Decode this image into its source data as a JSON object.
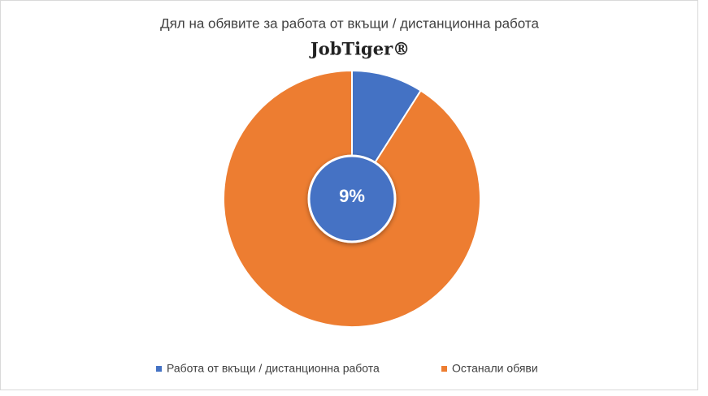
{
  "chart_data": {
    "type": "pie",
    "title": "Дял на обявите за работа от вкъщи / дистанционна работа",
    "logo": "JobTiger®",
    "categories": [
      "Работа от вкъщи / дистанционна работа",
      "Останали обяви"
    ],
    "values": [
      9,
      91
    ],
    "value_labels": [
      "9%",
      null
    ],
    "colors": [
      "#4472c4",
      "#ed7d31"
    ],
    "legend": "bottom"
  }
}
